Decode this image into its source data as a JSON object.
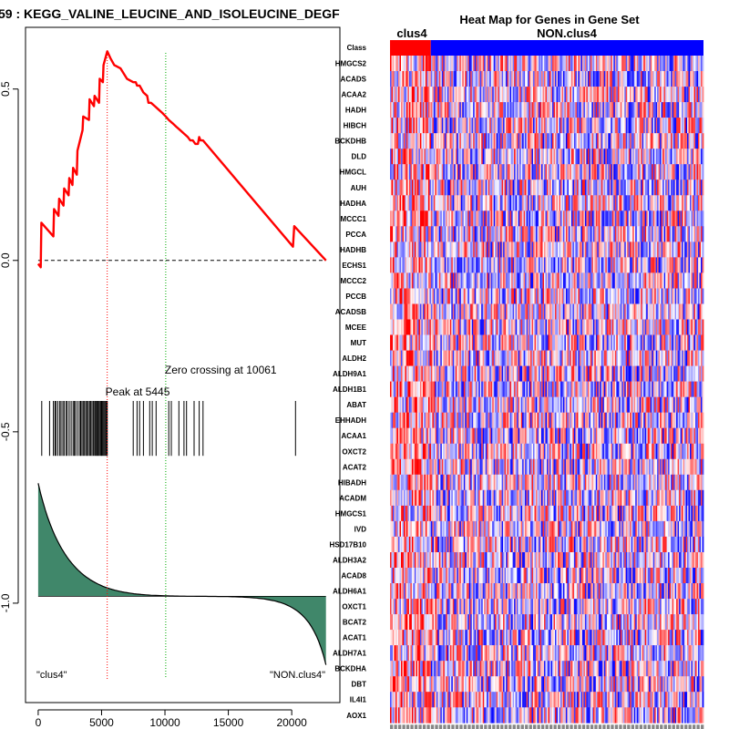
{
  "colors": {
    "es_curve": "#ff0000",
    "peak_line": "#ff0000",
    "zero_line": "#00aa00",
    "metric_fill": "#40876a",
    "class_a": "#ff0000",
    "class_b": "#0000ff",
    "heat_high": "#ff0000",
    "heat_low": "#0000ff"
  },
  "chart_data": [
    {
      "type": "line",
      "title": "59 : KEGG_VALINE_LEUCINE_AND_ISOLEUCINE_DEGF",
      "xlabel": "",
      "ylabel": "",
      "xlim": [
        -1000,
        23800
      ],
      "ylim": [
        -1.29,
        0.68
      ],
      "x_ticks": [
        0,
        5000,
        10000,
        15000,
        20000
      ],
      "x_tick_labels": [
        "0",
        "5000",
        "10000",
        "15000",
        "20000"
      ],
      "y_ticks": [
        0.5,
        0.0,
        -0.5,
        -1.0
      ],
      "y_tick_labels": [
        "0.5",
        "0.0",
        "-0.5",
        "-1.0"
      ],
      "enrichment_curve": {
        "x": [
          0,
          200,
          250,
          1200,
          1250,
          1600,
          1650,
          2000,
          2050,
          2400,
          2450,
          2700,
          2750,
          3050,
          3100,
          3500,
          3550,
          4000,
          4050,
          4400,
          4450,
          4800,
          4850,
          5100,
          5150,
          5445,
          5700,
          6000,
          6500,
          7000,
          7500,
          7700,
          7800,
          8000,
          8300,
          8600,
          8700,
          8900,
          9200,
          9500,
          9800,
          10061,
          10300,
          10600,
          10900,
          11200,
          11500,
          11800,
          12000,
          12200,
          12400,
          12600,
          12700,
          12800,
          13000,
          20100,
          20200,
          22700
        ],
        "y": [
          -0.01,
          -0.02,
          0.11,
          0.07,
          0.15,
          0.13,
          0.18,
          0.16,
          0.21,
          0.19,
          0.24,
          0.22,
          0.27,
          0.25,
          0.32,
          0.38,
          0.42,
          0.41,
          0.47,
          0.45,
          0.48,
          0.46,
          0.53,
          0.52,
          0.57,
          0.61,
          0.59,
          0.57,
          0.56,
          0.53,
          0.52,
          0.52,
          0.51,
          0.51,
          0.49,
          0.48,
          0.46,
          0.46,
          0.45,
          0.44,
          0.43,
          0.42,
          0.41,
          0.4,
          0.39,
          0.38,
          0.37,
          0.36,
          0.35,
          0.35,
          0.34,
          0.34,
          0.36,
          0.35,
          0.35,
          0.04,
          0.1,
          0.0
        ]
      },
      "baseline_y": 0.0,
      "peak": {
        "x": 5445,
        "label": "Peak at 5445"
      },
      "zero_crossing": {
        "x": 10061,
        "label": "Zero crossing at 10061"
      },
      "hits": [
        280,
        900,
        1200,
        1320,
        1400,
        1550,
        1700,
        1800,
        1950,
        2050,
        2200,
        2300,
        2450,
        2600,
        2750,
        2850,
        2950,
        3100,
        3250,
        3350,
        3450,
        3550,
        3650,
        3750,
        3850,
        3950,
        4050,
        4150,
        4250,
        4350,
        4450,
        4520,
        4600,
        4680,
        4760,
        4840,
        4920,
        5000,
        5080,
        5160,
        5240,
        5320,
        5400,
        5445,
        7500,
        7800,
        8000,
        8300,
        8800,
        9000,
        9300,
        10300,
        10500,
        11100,
        11500,
        11700,
        12300,
        12700,
        13000,
        20300
      ],
      "hits_ylim": [
        -0.57,
        -0.41
      ],
      "ranked_metric": {
        "n": 22700,
        "zero_level": -0.98,
        "head_y": -0.65,
        "tail_y": -1.18
      },
      "class_labels": {
        "left": "\"clus4\"",
        "right": "\"NON.clus4\""
      }
    },
    {
      "type": "heatmap",
      "title": "Heat Map for Genes in Gene Set",
      "class_row_label": "Class",
      "class_names": [
        "clus4",
        "NON.clus4"
      ],
      "class_a_fraction": 0.13,
      "genes": [
        "HMGCS2",
        "ACADS",
        "ACAA2",
        "HADH",
        "HIBCH",
        "BCKDHB",
        "DLD",
        "HMGCL",
        "AUH",
        "HADHA",
        "MCCC1",
        "PCCA",
        "HADHB",
        "ECHS1",
        "MCCC2",
        "PCCB",
        "ACADSB",
        "MCEE",
        "MUT",
        "ALDH2",
        "ALDH9A1",
        "ALDH1B1",
        "ABAT",
        "EHHADH",
        "ACAA1",
        "OXCT2",
        "ACAT2",
        "HIBADH",
        "ACADM",
        "HMGCS1",
        "IVD",
        "HSD17B10",
        "ALDH3A2",
        "ACAD8",
        "ALDH6A1",
        "OXCT1",
        "BCAT2",
        "ACAT1",
        "ALDH7A1",
        "BCKDHA",
        "DBT",
        "IL4I1",
        "AOX1"
      ],
      "samples": 230,
      "value_range": [
        -1,
        1
      ]
    }
  ]
}
